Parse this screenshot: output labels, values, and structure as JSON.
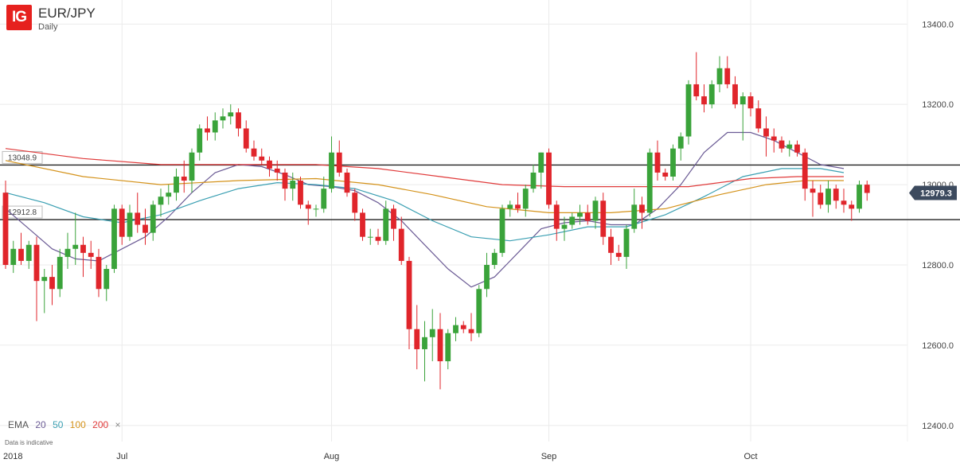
{
  "header": {
    "symbol": "EUR/JPY",
    "timeframe": "Daily",
    "logo_text": "IG"
  },
  "legend": {
    "label": "EMA",
    "items": [
      {
        "period": "20",
        "color": "#6b5b95"
      },
      {
        "period": "50",
        "color": "#3a9fb2"
      },
      {
        "period": "100",
        "color": "#d4921a"
      },
      {
        "period": "200",
        "color": "#e03a3a"
      }
    ],
    "close_symbol": "×"
  },
  "footnote": "Data is indicative",
  "colors": {
    "up": "#3aa33a",
    "down": "#e0252b",
    "grid": "#ebebeb",
    "level": "#222222",
    "badge": "#3c4a5e"
  },
  "chart_data": {
    "type": "candlestick",
    "y_ticks": [
      "13400.0",
      "13200.0",
      "13000.0",
      "12800.0",
      "12600.0",
      "12400.0"
    ],
    "y_range": [
      12360,
      13460
    ],
    "x_labels": [
      {
        "label": "2018",
        "index": 0
      },
      {
        "label": "Jul",
        "index": 15
      },
      {
        "label": "Aug",
        "index": 42
      },
      {
        "label": "Sep",
        "index": 70
      },
      {
        "label": "Oct",
        "index": 96
      }
    ],
    "horizontal_levels": [
      {
        "value": 13048.9,
        "label": "13048.9"
      },
      {
        "value": 12912.8,
        "label": "12912.8"
      }
    ],
    "last_price": {
      "value": 12979.3,
      "label": "12979.3"
    },
    "candles": [
      [
        12980,
        13010,
        12790,
        12800
      ],
      [
        12800,
        12860,
        12780,
        12840
      ],
      [
        12840,
        12880,
        12800,
        12810
      ],
      [
        12810,
        12860,
        12790,
        12850
      ],
      [
        12850,
        12870,
        12660,
        12760
      ],
      [
        12760,
        12790,
        12680,
        12770
      ],
      [
        12770,
        12800,
        12700,
        12740
      ],
      [
        12740,
        12840,
        12720,
        12820
      ],
      [
        12820,
        12880,
        12790,
        12840
      ],
      [
        12840,
        12930,
        12800,
        12850
      ],
      [
        12850,
        12870,
        12770,
        12830
      ],
      [
        12830,
        12860,
        12790,
        12820
      ],
      [
        12820,
        12840,
        12720,
        12740
      ],
      [
        12740,
        12800,
        12710,
        12790
      ],
      [
        12790,
        12950,
        12780,
        12940
      ],
      [
        12940,
        12950,
        12850,
        12870
      ],
      [
        12870,
        12950,
        12860,
        12930
      ],
      [
        12930,
        12980,
        12880,
        12900
      ],
      [
        12900,
        12940,
        12850,
        12880
      ],
      [
        12880,
        12960,
        12860,
        12950
      ],
      [
        12950,
        12990,
        12920,
        12970
      ],
      [
        12970,
        13000,
        12950,
        12980
      ],
      [
        12980,
        13040,
        12960,
        13020
      ],
      [
        13020,
        13060,
        12980,
        13010
      ],
      [
        13010,
        13090,
        12980,
        13080
      ],
      [
        13080,
        13150,
        13060,
        13140
      ],
      [
        13140,
        13170,
        13110,
        13130
      ],
      [
        13130,
        13180,
        13110,
        13160
      ],
      [
        13160,
        13190,
        13140,
        13170
      ],
      [
        13170,
        13200,
        13150,
        13180
      ],
      [
        13180,
        13190,
        13120,
        13140
      ],
      [
        13140,
        13160,
        13080,
        13090
      ],
      [
        13090,
        13110,
        13060,
        13070
      ],
      [
        13070,
        13090,
        13050,
        13060
      ],
      [
        13060,
        13070,
        13020,
        13040
      ],
      [
        13040,
        13060,
        13010,
        13030
      ],
      [
        13030,
        13040,
        12960,
        12990
      ],
      [
        12990,
        13030,
        12960,
        13010
      ],
      [
        13010,
        13020,
        12940,
        12950
      ],
      [
        12950,
        12960,
        12900,
        12940
      ],
      [
        12940,
        12950,
        12920,
        12940
      ],
      [
        12940,
        13020,
        12930,
        12990
      ],
      [
        12990,
        13120,
        12980,
        13080
      ],
      [
        13080,
        13110,
        13020,
        13030
      ],
      [
        13030,
        13040,
        12970,
        12980
      ],
      [
        12980,
        12990,
        12910,
        12930
      ],
      [
        12930,
        12940,
        12860,
        12870
      ],
      [
        12870,
        12890,
        12850,
        12870
      ],
      [
        12870,
        12890,
        12850,
        12860
      ],
      [
        12860,
        12960,
        12850,
        12940
      ],
      [
        12940,
        12950,
        12860,
        12890
      ],
      [
        12890,
        12920,
        12800,
        12810
      ],
      [
        12810,
        12820,
        12590,
        12640
      ],
      [
        12640,
        12700,
        12540,
        12590
      ],
      [
        12590,
        12660,
        12510,
        12620
      ],
      [
        12620,
        12690,
        12560,
        12640
      ],
      [
        12640,
        12680,
        12490,
        12560
      ],
      [
        12560,
        12640,
        12540,
        12630
      ],
      [
        12630,
        12670,
        12610,
        12650
      ],
      [
        12650,
        12660,
        12630,
        12640
      ],
      [
        12640,
        12680,
        12610,
        12630
      ],
      [
        12630,
        12750,
        12620,
        12740
      ],
      [
        12740,
        12830,
        12720,
        12800
      ],
      [
        12800,
        12840,
        12790,
        12830
      ],
      [
        12830,
        12950,
        12820,
        12940
      ],
      [
        12940,
        12960,
        12920,
        12950
      ],
      [
        12950,
        12980,
        12930,
        12940
      ],
      [
        12940,
        13000,
        12920,
        12990
      ],
      [
        12990,
        13050,
        12980,
        13030
      ],
      [
        13030,
        13080,
        12990,
        13080
      ],
      [
        13080,
        13090,
        12940,
        12950
      ],
      [
        12950,
        12960,
        12860,
        12890
      ],
      [
        12890,
        12920,
        12860,
        12900
      ],
      [
        12900,
        12930,
        12890,
        12920
      ],
      [
        12920,
        12950,
        12900,
        12930
      ],
      [
        12930,
        12950,
        12900,
        12910
      ],
      [
        12910,
        12970,
        12890,
        12960
      ],
      [
        12960,
        12980,
        12850,
        12870
      ],
      [
        12870,
        12890,
        12800,
        12830
      ],
      [
        12830,
        12850,
        12810,
        12820
      ],
      [
        12820,
        12900,
        12790,
        12890
      ],
      [
        12890,
        12990,
        12880,
        12950
      ],
      [
        12950,
        12970,
        12890,
        12930
      ],
      [
        12930,
        13090,
        12920,
        13080
      ],
      [
        13080,
        13110,
        13010,
        13030
      ],
      [
        13030,
        13040,
        13010,
        13020
      ],
      [
        13020,
        13100,
        13010,
        13090
      ],
      [
        13090,
        13130,
        13060,
        13120
      ],
      [
        13120,
        13260,
        13100,
        13250
      ],
      [
        13250,
        13330,
        13210,
        13220
      ],
      [
        13220,
        13250,
        13180,
        13200
      ],
      [
        13200,
        13260,
        13190,
        13250
      ],
      [
        13250,
        13320,
        13230,
        13290
      ],
      [
        13290,
        13320,
        13240,
        13250
      ],
      [
        13250,
        13270,
        13190,
        13200
      ],
      [
        13200,
        13230,
        13110,
        13220
      ],
      [
        13220,
        13230,
        13170,
        13190
      ],
      [
        13190,
        13210,
        13130,
        13140
      ],
      [
        13140,
        13170,
        13070,
        13120
      ],
      [
        13120,
        13140,
        13080,
        13110
      ],
      [
        13110,
        13120,
        13080,
        13090
      ],
      [
        13090,
        13110,
        13070,
        13100
      ],
      [
        13100,
        13110,
        13070,
        13080
      ],
      [
        13080,
        13090,
        12960,
        12990
      ],
      [
        12990,
        13010,
        12920,
        12980
      ],
      [
        12980,
        13000,
        12940,
        12950
      ],
      [
        12950,
        13010,
        12930,
        12990
      ],
      [
        12990,
        13000,
        12940,
        12960
      ],
      [
        12960,
        12990,
        12930,
        12950
      ],
      [
        12950,
        12960,
        12910,
        12940
      ],
      [
        12940,
        13010,
        12930,
        13000
      ],
      [
        13000,
        13010,
        12960,
        12979.3
      ]
    ],
    "ema": [
      {
        "period": "20",
        "color": "#6b5b95",
        "values": [
          [
            0,
            12940
          ],
          [
            3,
            12890
          ],
          [
            6,
            12840
          ],
          [
            9,
            12815
          ],
          [
            12,
            12810
          ],
          [
            15,
            12840
          ],
          [
            18,
            12870
          ],
          [
            21,
            12920
          ],
          [
            24,
            12980
          ],
          [
            27,
            13030
          ],
          [
            30,
            13050
          ],
          [
            33,
            13045
          ],
          [
            36,
            13025
          ],
          [
            39,
            13000
          ],
          [
            42,
            12995
          ],
          [
            45,
            12985
          ],
          [
            48,
            12955
          ],
          [
            51,
            12910
          ],
          [
            54,
            12850
          ],
          [
            57,
            12790
          ],
          [
            60,
            12745
          ],
          [
            63,
            12770
          ],
          [
            66,
            12830
          ],
          [
            69,
            12890
          ],
          [
            72,
            12905
          ],
          [
            75,
            12910
          ],
          [
            78,
            12900
          ],
          [
            81,
            12900
          ],
          [
            84,
            12940
          ],
          [
            87,
            13000
          ],
          [
            90,
            13080
          ],
          [
            93,
            13130
          ],
          [
            96,
            13130
          ],
          [
            99,
            13110
          ],
          [
            102,
            13080
          ],
          [
            105,
            13050
          ],
          [
            108,
            13040
          ]
        ]
      },
      {
        "period": "50",
        "color": "#3a9fb2",
        "values": [
          [
            0,
            12980
          ],
          [
            5,
            12955
          ],
          [
            10,
            12920
          ],
          [
            15,
            12905
          ],
          [
            20,
            12925
          ],
          [
            25,
            12960
          ],
          [
            30,
            12990
          ],
          [
            35,
            13005
          ],
          [
            40,
            13000
          ],
          [
            45,
            12990
          ],
          [
            50,
            12960
          ],
          [
            55,
            12910
          ],
          [
            60,
            12870
          ],
          [
            65,
            12860
          ],
          [
            70,
            12875
          ],
          [
            75,
            12895
          ],
          [
            80,
            12895
          ],
          [
            85,
            12925
          ],
          [
            90,
            12970
          ],
          [
            95,
            13020
          ],
          [
            100,
            13040
          ],
          [
            105,
            13040
          ],
          [
            108,
            13030
          ]
        ]
      },
      {
        "period": "100",
        "color": "#d4921a",
        "values": [
          [
            0,
            13060
          ],
          [
            10,
            13020
          ],
          [
            20,
            13000
          ],
          [
            30,
            13010
          ],
          [
            40,
            13015
          ],
          [
            48,
            13000
          ],
          [
            55,
            12975
          ],
          [
            62,
            12945
          ],
          [
            70,
            12930
          ],
          [
            78,
            12930
          ],
          [
            85,
            12940
          ],
          [
            92,
            12975
          ],
          [
            98,
            13000
          ],
          [
            103,
            13010
          ],
          [
            108,
            13010
          ]
        ]
      },
      {
        "period": "200",
        "color": "#e03a3a",
        "values": [
          [
            0,
            13090
          ],
          [
            10,
            13065
          ],
          [
            20,
            13050
          ],
          [
            30,
            13050
          ],
          [
            40,
            13050
          ],
          [
            48,
            13040
          ],
          [
            56,
            13020
          ],
          [
            64,
            13000
          ],
          [
            72,
            12995
          ],
          [
            80,
            12995
          ],
          [
            88,
            12995
          ],
          [
            96,
            13015
          ],
          [
            102,
            13020
          ],
          [
            108,
            13020
          ]
        ]
      }
    ]
  }
}
